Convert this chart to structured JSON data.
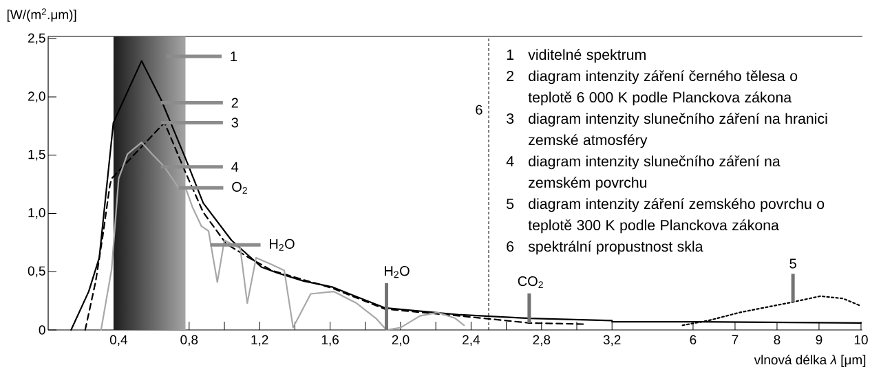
{
  "chart_data": [
    {
      "type": "line",
      "ylabel": "[W/(m$^{2}$.μm)]",
      "xlim": [
        0,
        3.2
      ],
      "ylim": [
        0,
        2.52
      ],
      "xticks": [
        {
          "value": 0.4,
          "label": "0,4"
        },
        {
          "value": 0.8,
          "label": "0,8"
        },
        {
          "value": 1.0,
          "label": null
        },
        {
          "value": 1.2,
          "label": "1,2"
        },
        {
          "value": 1.4,
          "label": null
        },
        {
          "value": 1.6,
          "label": "1,6"
        },
        {
          "value": 1.8,
          "label": null
        },
        {
          "value": 2.0,
          "label": "2,0"
        },
        {
          "value": 2.2,
          "label": null
        },
        {
          "value": 2.4,
          "label": "2,4"
        },
        {
          "value": 2.6,
          "label": null
        },
        {
          "value": 2.8,
          "label": "2,8"
        },
        {
          "value": 3.0,
          "label": null
        },
        {
          "value": 3.2,
          "label": "3,2"
        }
      ],
      "yticks": [
        0,
        {
          "value": 0.5,
          "label": "0,5"
        },
        {
          "value": 1.0,
          "label": "1,0"
        },
        {
          "value": 1.5,
          "label": "1,5"
        },
        {
          "value": 2.0,
          "label": "2,0"
        },
        {
          "value": 2.5,
          "label": "2,5"
        }
      ],
      "bands": [
        {
          "axis": "x",
          "from": 0.37,
          "to": 0.78,
          "color": "#1e1e1e"
        }
      ],
      "ref_lines": [
        {
          "axis": "x",
          "value": 2.5,
          "line_style": "dashed",
          "color": "#000000"
        }
      ],
      "series": [
        {
          "color": "#000000",
          "line_style": "solid",
          "x": [
            0.13,
            0.23,
            0.29,
            0.33,
            0.37,
            0.53,
            0.64,
            0.78,
            0.88,
            1.04,
            1.21,
            1.3,
            1.45,
            1.61,
            1.91,
            2.34,
            2.73,
            3.2
          ],
          "values": [
            0,
            0.33,
            0.62,
            1.2,
            1.78,
            2.31,
            1.98,
            1.47,
            1.09,
            0.77,
            0.54,
            0.49,
            0.42,
            0.37,
            0.19,
            0.13,
            0.1,
            0.08
          ]
        },
        {
          "color": "#000000",
          "line_style": "dashed",
          "x": [
            0.21,
            0.27,
            0.31,
            0.35,
            0.36,
            0.66,
            0.78,
            0.88,
            1.01,
            1.14,
            1.27,
            1.61,
            1.91,
            2.34,
            2.73,
            3.04
          ],
          "values": [
            0,
            0.42,
            0.81,
            1.24,
            1.3,
            1.78,
            1.35,
            1.01,
            0.74,
            0.62,
            0.51,
            0.36,
            0.18,
            0.12,
            0.06,
            0.05
          ]
        },
        {
          "color": "#a8a8a8",
          "line_style": "solid",
          "x": [
            0.3,
            0.36,
            0.4,
            0.45,
            0.53,
            0.59,
            0.66,
            0.74,
            0.78,
            0.82,
            0.87,
            0.91,
            0.96,
            1.0,
            1.09,
            1.13,
            1.18,
            1.27,
            1.34,
            1.39,
            1.49,
            1.62,
            1.75,
            1.86,
            1.92,
            2.0,
            2.11,
            2.21,
            2.31,
            2.36
          ],
          "values": [
            0,
            0.52,
            1.3,
            1.51,
            1.61,
            1.51,
            1.4,
            1.22,
            1.22,
            1.05,
            0.89,
            0.85,
            0.41,
            0.77,
            0.7,
            0.23,
            0.62,
            0.56,
            0.51,
            0.02,
            0.31,
            0.33,
            0.23,
            0.1,
            0,
            0.02,
            0.12,
            0.15,
            0.1,
            0.04
          ]
        }
      ],
      "annotations": [
        {
          "text": "2",
          "x": 0.64,
          "y": 1.95
        },
        {
          "text": "3",
          "x": 0.64,
          "y": 1.78
        },
        {
          "text": "4",
          "x": 0.64,
          "y": 1.4
        },
        {
          "text": "O$_{2}$",
          "x": 0.74,
          "y": 1.22
        },
        {
          "text": "H$_{2}$O",
          "x": 1.92,
          "y": 0
        },
        {
          "text": "CO$_{2}$",
          "x": 2.73,
          "y": 0.06
        },
        {
          "text": "6",
          "x": 2.5,
          "y": 1.89
        },
        "1",
        {
          "text": "H$_{2}$O",
          "x": 0.92,
          "y": 0.73
        },
        "1",
        "viditelné spektrum",
        "2",
        "diagram intenzity záření černého tělesa o teplotě 6 000 K podle Planckova zákona",
        "3",
        "diagram intenzity slunečního záření na hranici zemské atmosféry",
        "4",
        "diagram intenzity slunečního záření na zemském povrchu",
        "5",
        "diagram intenzity záření zemského povrchu o teplotě 300 K podle Planckova zákona",
        "6",
        "spektrální propustnost skla"
      ]
    },
    {
      "type": "line",
      "xlabel": "vlnová délka *λ* [μm]",
      "xlim": [
        4.07,
        10.03
      ],
      "ylim": [
        0,
        2.52
      ],
      "tick_labels": "x",
      "xticks": [
        6,
        7,
        8,
        9,
        10
      ],
      "series": [
        {
          "color": "#000000",
          "line_style": "solid",
          "x": [
            4.07,
            6,
            10
          ],
          "values": [
            0.07,
            0.07,
            0.06
          ]
        },
        {
          "color": "#000000",
          "line_style": "dotted",
          "x": [
            5.75,
            6.36,
            7.11,
            8.38,
            9.03,
            9.57,
            9.97
          ],
          "values": [
            0.04,
            0.08,
            0.15,
            0.24,
            0.29,
            0.27,
            0.21
          ]
        }
      ],
      "annotations": [
        {
          "text": "5",
          "x": 8.38,
          "y": 0.24
        }
      ]
    }
  ]
}
